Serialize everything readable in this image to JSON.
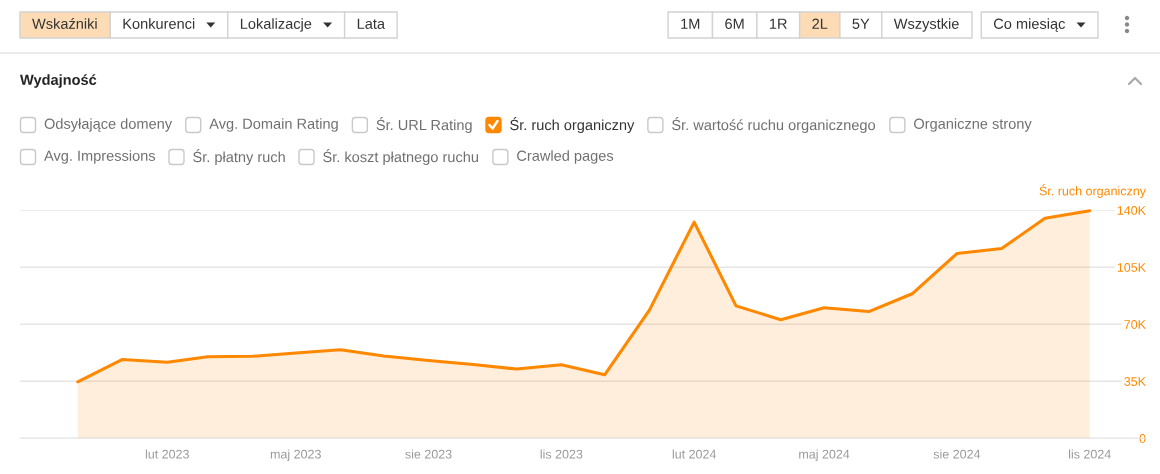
{
  "chart_data": {
    "type": "area",
    "title": "Wydajność",
    "ylabel": "Śr. ruch organiczny",
    "x": [
      "2022-12",
      "2023-01",
      "2023-02",
      "2023-03",
      "2023-04",
      "2023-05",
      "2023-06",
      "2023-07",
      "2023-08",
      "2023-09",
      "2023-10",
      "2023-11",
      "2023-12",
      "2024-01",
      "2024-02",
      "2024-03",
      "2024-04",
      "2024-05",
      "2024-06",
      "2024-07",
      "2024-08",
      "2024-09",
      "2024-10",
      "2024-11"
    ],
    "series": [
      {
        "name": "Śr. ruch organiczny",
        "color": "#ff8800",
        "values": [
          34700,
          48400,
          46700,
          50000,
          50300,
          52400,
          54300,
          50500,
          47700,
          45300,
          42500,
          45100,
          39000,
          78700,
          132700,
          81300,
          72800,
          80100,
          77800,
          88700,
          113400,
          116500,
          135000,
          139700
        ]
      }
    ],
    "xlim": [
      "2022-10-22",
      "2024-12-10"
    ],
    "ylim": [
      0,
      140000
    ],
    "xticks": [
      {
        "value": "2023-02",
        "label": "lut 2023"
      },
      {
        "value": "2023-05",
        "label": "maj 2023"
      },
      {
        "value": "2023-08",
        "label": "sie 2023"
      },
      {
        "value": "2023-11",
        "label": "lis 2023"
      },
      {
        "value": "2024-02",
        "label": "lut 2024"
      },
      {
        "value": "2024-05",
        "label": "maj 2024"
      },
      {
        "value": "2024-08",
        "label": "sie 2024"
      },
      {
        "value": "2024-11",
        "label": "lis 2024"
      }
    ],
    "yticks": [
      0,
      {
        "value": 35000,
        "label": "35K"
      },
      {
        "value": 70000,
        "label": "70K"
      },
      {
        "value": 105000,
        "label": "105K"
      },
      {
        "value": 140000,
        "label": "140K"
      }
    ],
    "grid": "y",
    "legend": "top",
    "annotations": [
      "Wskaźniki",
      "Konkurenci",
      "Lokalizacje",
      "Lata",
      "1M",
      "6M",
      "1R",
      "2L",
      "5Y",
      "Wszystkie",
      "Co miesiąc",
      "Odsyłające domeny",
      "Avg. Domain Rating",
      "Śr. URL Rating",
      "Śr. wartość ruchu organicznego",
      "Organiczne strony",
      "Avg. Impressions",
      "Śr. płatny ruch",
      "Śr. koszt płatnego ruchu",
      "Crawled pages"
    ]
  }
}
